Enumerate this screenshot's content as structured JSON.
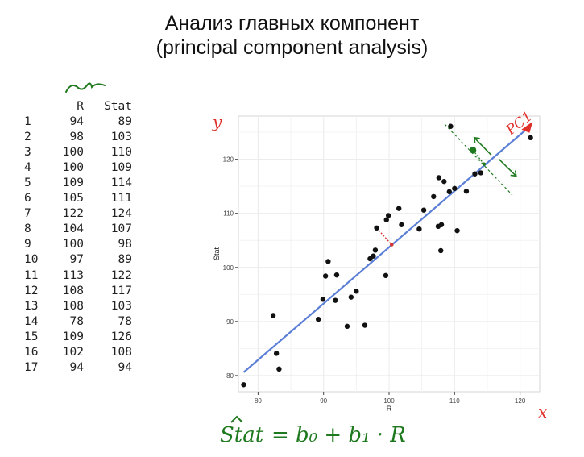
{
  "title": {
    "line1": "Анализ главных компонент",
    "line2": "(principal component analysis)"
  },
  "table": {
    "headers": [
      "",
      "R",
      "Stat"
    ],
    "rows": [
      {
        "idx": "1",
        "R": "94",
        "Stat": "89"
      },
      {
        "idx": "2",
        "R": "98",
        "Stat": "103"
      },
      {
        "idx": "3",
        "R": "100",
        "Stat": "110"
      },
      {
        "idx": "4",
        "R": "100",
        "Stat": "109"
      },
      {
        "idx": "5",
        "R": "109",
        "Stat": "114"
      },
      {
        "idx": "6",
        "R": "105",
        "Stat": "111"
      },
      {
        "idx": "7",
        "R": "122",
        "Stat": "124"
      },
      {
        "idx": "8",
        "R": "104",
        "Stat": "107"
      },
      {
        "idx": "9",
        "R": "100",
        "Stat": "98"
      },
      {
        "idx": "10",
        "R": "97",
        "Stat": "89"
      },
      {
        "idx": "11",
        "R": "113",
        "Stat": "122"
      },
      {
        "idx": "12",
        "R": "108",
        "Stat": "117"
      },
      {
        "idx": "13",
        "R": "108",
        "Stat": "103"
      },
      {
        "idx": "14",
        "R": "78",
        "Stat": "78"
      },
      {
        "idx": "15",
        "R": "109",
        "Stat": "126"
      },
      {
        "idx": "16",
        "R": "102",
        "Stat": "108"
      },
      {
        "idx": "17",
        "R": "94",
        "Stat": "94"
      }
    ]
  },
  "chart_data": {
    "type": "scatter",
    "xlabel": "R",
    "ylabel": "Stat",
    "xlim": [
      77,
      123
    ],
    "ylim": [
      77,
      128
    ],
    "xticks": [
      80,
      90,
      100,
      110,
      120
    ],
    "yticks": [
      80,
      90,
      100,
      110,
      120
    ],
    "grid": true,
    "points": [
      [
        77.8,
        78.3
      ],
      [
        82.3,
        91.1
      ],
      [
        82.8,
        84.1
      ],
      [
        83.2,
        81.2
      ],
      [
        89.2,
        90.4
      ],
      [
        89.9,
        94.1
      ],
      [
        90.3,
        98.4
      ],
      [
        90.7,
        101.1
      ],
      [
        91.8,
        93.9
      ],
      [
        92.0,
        98.6
      ],
      [
        93.6,
        89.1
      ],
      [
        94.2,
        94.5
      ],
      [
        95.0,
        95.6
      ],
      [
        96.3,
        89.3
      ],
      [
        97.1,
        101.6
      ],
      [
        97.6,
        102.1
      ],
      [
        97.9,
        103.2
      ],
      [
        98.1,
        107.3
      ],
      [
        99.5,
        98.5
      ],
      [
        99.6,
        108.8
      ],
      [
        99.9,
        109.6
      ],
      [
        101.5,
        110.9
      ],
      [
        101.9,
        107.9
      ],
      [
        104.6,
        107.1
      ],
      [
        105.3,
        110.6
      ],
      [
        106.8,
        113.1
      ],
      [
        107.5,
        107.6
      ],
      [
        107.6,
        116.6
      ],
      [
        107.9,
        103.1
      ],
      [
        108.0,
        107.9
      ],
      [
        108.4,
        115.9
      ],
      [
        109.2,
        114.0
      ],
      [
        109.4,
        126.1
      ],
      [
        110.0,
        114.6
      ],
      [
        110.4,
        106.8
      ],
      [
        111.8,
        114.1
      ],
      [
        113.1,
        117.3
      ],
      [
        114.0,
        117.5
      ],
      [
        121.6,
        124.0
      ]
    ],
    "fit_line": {
      "x": [
        77.8,
        121.2
      ],
      "y": [
        80.6,
        125.8
      ],
      "color": "#5b7fd6"
    },
    "annotations": {
      "axis_y_label": "y",
      "axis_x_label": "x",
      "pc_label": "PC1",
      "highlight_point": [
        112.8,
        121.7
      ],
      "projections": [
        {
          "from": [
            98.1,
            107.3
          ],
          "to": [
            100.4,
            104.2
          ],
          "color": "#d93030"
        },
        {
          "from": [
            112.8,
            121.7
          ],
          "to": [
            114.5,
            119.1
          ],
          "color": "#1f7a1f"
        }
      ]
    }
  },
  "formula": {
    "lhs": "Stat",
    "rhs": "= b₀ + b₁ · R"
  },
  "colors": {
    "points": "#111111",
    "fit_line": "#5b7fd6",
    "panel_bg": "#ffffff",
    "grid": "#ebebeb",
    "red_ink": "#e0302a",
    "green_ink": "#1f7a1f"
  }
}
